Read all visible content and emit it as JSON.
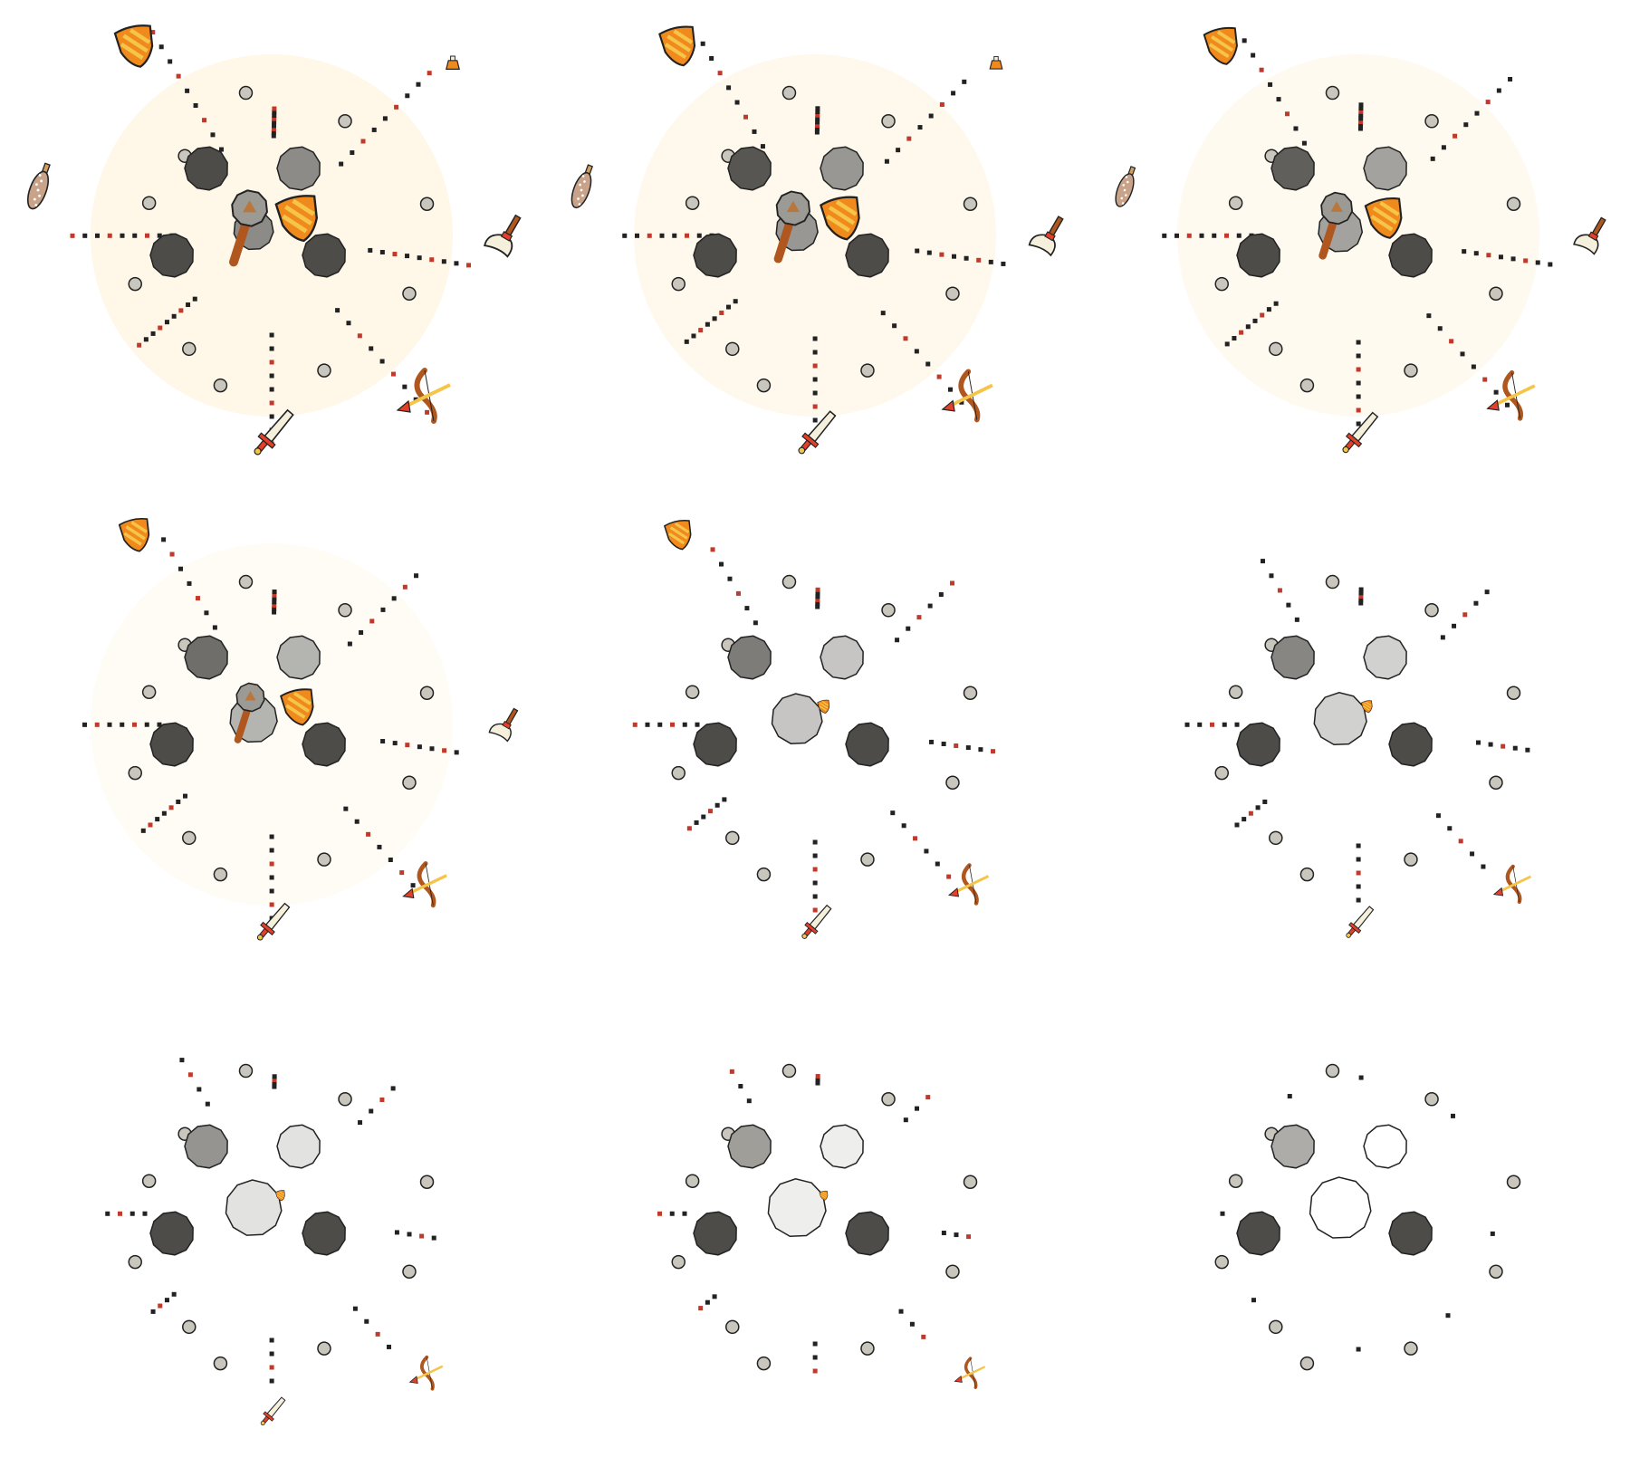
{
  "sprite_sheet": {
    "frame_count": 9,
    "grid": {
      "columns": 3,
      "rows": 3
    },
    "frames": [
      {
        "frame": 1,
        "burst_fade": 0.0,
        "items_visible": [
          "shield",
          "potion",
          "club",
          "axe",
          "bow",
          "sword",
          "mace",
          "shield-small"
        ]
      },
      {
        "frame": 2,
        "burst_fade": 0.1,
        "items_visible": [
          "shield",
          "potion",
          "club",
          "axe",
          "bow",
          "sword",
          "mace",
          "shield-small"
        ]
      },
      {
        "frame": 3,
        "burst_fade": 0.2,
        "items_visible": [
          "shield",
          "club",
          "axe",
          "bow",
          "sword",
          "mace",
          "shield-small"
        ]
      },
      {
        "frame": 4,
        "burst_fade": 0.35,
        "items_visible": [
          "shield",
          "axe",
          "bow",
          "sword",
          "mace",
          "shield-small"
        ]
      },
      {
        "frame": 5,
        "burst_fade": 0.5,
        "items_visible": [
          "shield",
          "bow",
          "sword",
          "shield-small"
        ]
      },
      {
        "frame": 6,
        "burst_fade": 0.6,
        "items_visible": [
          "bow",
          "sword",
          "shield-small"
        ]
      },
      {
        "frame": 7,
        "burst_fade": 0.75,
        "items_visible": [
          "bow",
          "sword",
          "shield-small"
        ]
      },
      {
        "frame": 8,
        "burst_fade": 0.85,
        "items_visible": [
          "bow",
          "shield-small"
        ]
      },
      {
        "frame": 9,
        "burst_fade": 1.0,
        "items_visible": []
      }
    ]
  },
  "colors": {
    "stone_dark": "#4d4c49",
    "stone_mid": "#8c8b87",
    "stone_light": "#d6d5d0",
    "pebble": "#c9c7bd",
    "outline": "#222222",
    "shield_orange": "#f08a1c",
    "shield_stripe": "#f5c54a",
    "wood_brown": "#b0561f",
    "red_accent": "#e2402a",
    "blade_cream": "#f4f0dc",
    "glow": "#fff6e6"
  },
  "icons": [
    "shield-icon",
    "potion-icon",
    "spiked-club-icon",
    "axe-icon",
    "bow-and-arrow-icon",
    "sword-icon",
    "mace-icon",
    "rock-icon"
  ]
}
